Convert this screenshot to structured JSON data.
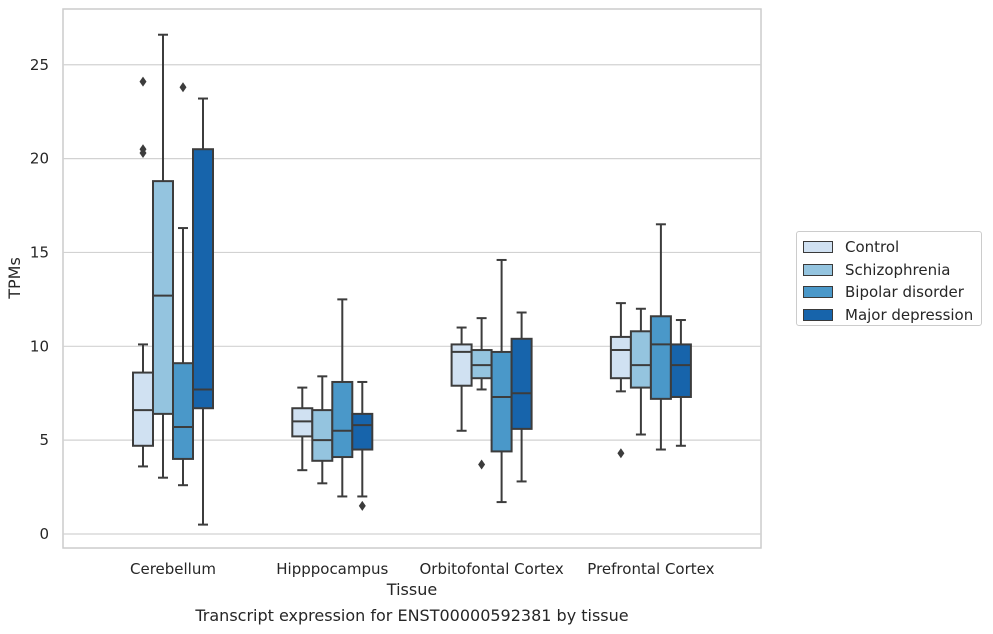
{
  "chart_data": {
    "type": "boxplot",
    "xlabel": "Tissue",
    "ylabel": "TPMs",
    "categories": [
      "Cerebellum",
      "Hipppocampus",
      "Orbitofontal Cortex",
      "Prefrontal Cortex"
    ],
    "ylim": [
      -0.7,
      28
    ],
    "yticks": [
      0,
      5,
      10,
      15,
      20,
      25
    ],
    "grid": "horizontal",
    "legend_position": "right",
    "series": [
      {
        "name": "Control",
        "color": "#d0e1f2",
        "boxes": [
          {
            "whisker_low": 3.6,
            "q1": 4.7,
            "median": 6.6,
            "q3": 8.6,
            "whisker_high": 10.1,
            "outliers": [
              20.3,
              20.5,
              24.1
            ]
          },
          {
            "whisker_low": 3.4,
            "q1": 5.2,
            "median": 6.0,
            "q3": 6.7,
            "whisker_high": 7.8,
            "outliers": []
          },
          {
            "whisker_low": 5.5,
            "q1": 7.9,
            "median": 9.7,
            "q3": 10.1,
            "whisker_high": 11.0,
            "outliers": []
          },
          {
            "whisker_low": 7.6,
            "q1": 8.3,
            "median": 9.8,
            "q3": 10.5,
            "whisker_high": 12.3,
            "outliers": [
              4.3
            ]
          }
        ]
      },
      {
        "name": "Schizophrenia",
        "color": "#94c4df",
        "boxes": [
          {
            "whisker_low": 3.0,
            "q1": 6.4,
            "median": 12.7,
            "q3": 18.8,
            "whisker_high": 26.6,
            "outliers": []
          },
          {
            "whisker_low": 2.7,
            "q1": 3.9,
            "median": 5.0,
            "q3": 6.6,
            "whisker_high": 8.4,
            "outliers": []
          },
          {
            "whisker_low": 7.7,
            "q1": 8.3,
            "median": 9.0,
            "q3": 9.8,
            "whisker_high": 11.5,
            "outliers": [
              3.7
            ]
          },
          {
            "whisker_low": 5.3,
            "q1": 7.8,
            "median": 9.0,
            "q3": 10.8,
            "whisker_high": 12.0,
            "outliers": []
          }
        ]
      },
      {
        "name": "Bipolar disorder",
        "color": "#4a98c9",
        "boxes": [
          {
            "whisker_low": 2.6,
            "q1": 4.0,
            "median": 5.7,
            "q3": 9.1,
            "whisker_high": 16.3,
            "outliers": [
              23.8
            ]
          },
          {
            "whisker_low": 2.0,
            "q1": 4.1,
            "median": 5.5,
            "q3": 8.1,
            "whisker_high": 12.5,
            "outliers": []
          },
          {
            "whisker_low": 1.7,
            "q1": 4.4,
            "median": 7.3,
            "q3": 9.7,
            "whisker_high": 14.6,
            "outliers": []
          },
          {
            "whisker_low": 4.5,
            "q1": 7.2,
            "median": 10.1,
            "q3": 11.6,
            "whisker_high": 16.5,
            "outliers": []
          }
        ]
      },
      {
        "name": "Major depression",
        "color": "#1764ab",
        "boxes": [
          {
            "whisker_low": 0.5,
            "q1": 6.7,
            "median": 7.7,
            "q3": 20.5,
            "whisker_high": 23.2,
            "outliers": []
          },
          {
            "whisker_low": 2.0,
            "q1": 4.5,
            "median": 5.8,
            "q3": 6.4,
            "whisker_high": 8.1,
            "outliers": [
              1.5
            ]
          },
          {
            "whisker_low": 2.8,
            "q1": 5.6,
            "median": 7.5,
            "q3": 10.4,
            "whisker_high": 11.8,
            "outliers": []
          },
          {
            "whisker_low": 4.7,
            "q1": 7.3,
            "median": 9.0,
            "q3": 10.1,
            "whisker_high": 11.4,
            "outliers": []
          }
        ]
      }
    ],
    "caption": "Transcript expression for ENST00000592381 by tissue"
  }
}
